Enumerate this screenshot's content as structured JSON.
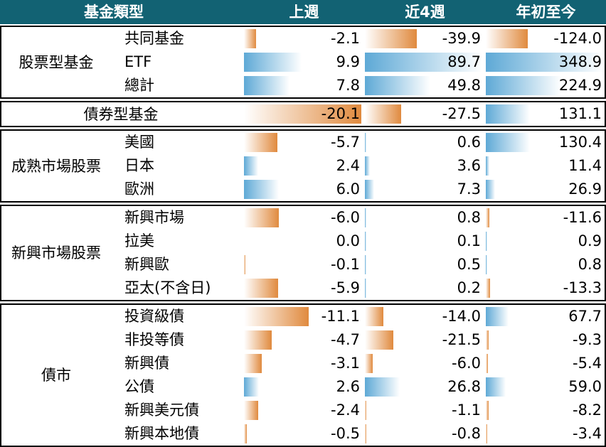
{
  "header": {
    "category": "基金類型",
    "col1": "上週",
    "col2": "近4週",
    "col3": "年初至今"
  },
  "colors": {
    "header_bg": "#126273",
    "negative": "#e08a3e",
    "positive": "#5ea9d6"
  },
  "groups": [
    {
      "name": "股票型基金",
      "rows": [
        {
          "label": "共同基金",
          "values": [
            -2.1,
            -39.9,
            -124.0
          ],
          "display": [
            "-2.1",
            "-39.9",
            "-124.0"
          ]
        },
        {
          "label": "ETF",
          "values": [
            9.9,
            89.7,
            348.9
          ],
          "display": [
            "9.9",
            "89.7",
            "348.9"
          ]
        },
        {
          "label": "總計",
          "values": [
            7.8,
            49.8,
            224.9
          ],
          "display": [
            "7.8",
            "49.8",
            "224.9"
          ]
        }
      ]
    },
    {
      "name": "債券型基金",
      "rows": [
        {
          "label": "",
          "values": [
            -20.1,
            -27.5,
            131.1
          ],
          "display": [
            "-20.1",
            "-27.5",
            "131.1"
          ]
        }
      ]
    },
    {
      "name": "成熟市場股票",
      "rows": [
        {
          "label": "美國",
          "values": [
            -5.7,
            0.6,
            130.4
          ],
          "display": [
            "-5.7",
            "0.6",
            "130.4"
          ]
        },
        {
          "label": "日本",
          "values": [
            2.4,
            3.6,
            11.4
          ],
          "display": [
            "2.4",
            "3.6",
            "11.4"
          ]
        },
        {
          "label": "歐洲",
          "values": [
            6.0,
            7.3,
            26.9
          ],
          "display": [
            "6.0",
            "7.3",
            "26.9"
          ]
        }
      ]
    },
    {
      "name": "新興市場股票",
      "rows": [
        {
          "label": "新興市場",
          "values": [
            -6.0,
            0.8,
            -11.6
          ],
          "display": [
            "-6.0",
            "0.8",
            "-11.6"
          ]
        },
        {
          "label": "拉美",
          "values": [
            0.0,
            0.1,
            0.9
          ],
          "display": [
            "0.0",
            "0.1",
            "0.9"
          ]
        },
        {
          "label": "新興歐",
          "values": [
            -0.1,
            0.5,
            0.8
          ],
          "display": [
            "-0.1",
            "0.5",
            "0.8"
          ]
        },
        {
          "label": "亞太(不含日)",
          "values": [
            -5.9,
            0.2,
            -13.3
          ],
          "display": [
            "-5.9",
            "0.2",
            "-13.3"
          ]
        }
      ]
    },
    {
      "name": "債市",
      "rows": [
        {
          "label": "投資級債",
          "values": [
            -11.1,
            -14.0,
            67.7
          ],
          "display": [
            "-11.1",
            "-14.0",
            "67.7"
          ]
        },
        {
          "label": "非投等債",
          "values": [
            -4.7,
            -21.5,
            -9.3
          ],
          "display": [
            "-4.7",
            "-21.5",
            "-9.3"
          ]
        },
        {
          "label": "新興債",
          "values": [
            -3.1,
            -6.0,
            -5.4
          ],
          "display": [
            "-3.1",
            "-6.0",
            "-5.4"
          ]
        },
        {
          "label": "公債",
          "values": [
            2.6,
            26.8,
            59.0
          ],
          "display": [
            "2.6",
            "26.8",
            "59.0"
          ]
        },
        {
          "label": "新興美元債",
          "values": [
            -2.4,
            -1.1,
            -8.2
          ],
          "display": [
            "-2.4",
            "-1.1",
            "-8.2"
          ]
        },
        {
          "label": "新興本地債",
          "values": [
            -0.5,
            -0.8,
            -3.4
          ],
          "display": [
            "-0.5",
            "-0.8",
            "-3.4"
          ]
        }
      ]
    }
  ],
  "chart_data": {
    "type": "table",
    "columns": [
      "上週",
      "近4週",
      "年初至今"
    ],
    "rows": [
      [
        "股票型基金",
        "共同基金",
        -2.1,
        -39.9,
        -124.0
      ],
      [
        "股票型基金",
        "ETF",
        9.9,
        89.7,
        348.9
      ],
      [
        "股票型基金",
        "總計",
        7.8,
        49.8,
        224.9
      ],
      [
        "債券型基金",
        "",
        -20.1,
        -27.5,
        131.1
      ],
      [
        "成熟市場股票",
        "美國",
        -5.7,
        0.6,
        130.4
      ],
      [
        "成熟市場股票",
        "日本",
        2.4,
        3.6,
        11.4
      ],
      [
        "成熟市場股票",
        "歐洲",
        6.0,
        7.3,
        26.9
      ],
      [
        "新興市場股票",
        "新興市場",
        -6.0,
        0.8,
        -11.6
      ],
      [
        "新興市場股票",
        "拉美",
        0.0,
        0.1,
        0.9
      ],
      [
        "新興市場股票",
        "新興歐",
        -0.1,
        0.5,
        0.8
      ],
      [
        "新興市場股票",
        "亞太(不含日)",
        -5.9,
        0.2,
        -13.3
      ],
      [
        "債市",
        "投資級債",
        -11.1,
        -14.0,
        67.7
      ],
      [
        "債市",
        "非投等債",
        -4.7,
        -21.5,
        -9.3
      ],
      [
        "債市",
        "新興債",
        -3.1,
        -6.0,
        -5.4
      ],
      [
        "債市",
        "公債",
        2.6,
        26.8,
        59.0
      ],
      [
        "債市",
        "新興美元債",
        -2.4,
        -1.1,
        -8.2
      ],
      [
        "債市",
        "新興本地債",
        -0.5,
        -0.8,
        -3.4
      ]
    ]
  }
}
